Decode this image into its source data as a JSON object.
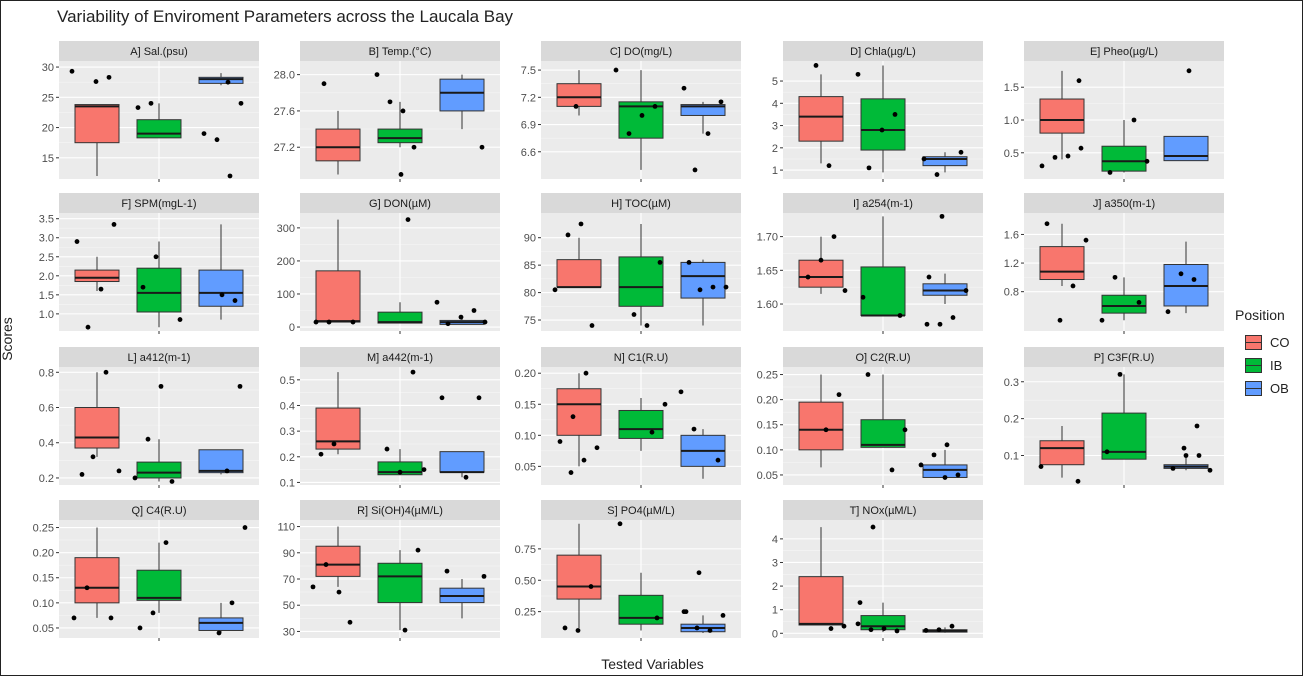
{
  "figure": {
    "title": "Variability of Enviroment Parameters across the Laucala Bay",
    "xlabel": "Tested Variables",
    "ylabel": "Scores"
  },
  "legend": {
    "title": "Position",
    "items": [
      {
        "label": "CO",
        "color": "#F8766D"
      },
      {
        "label": "IB",
        "color": "#00BA38"
      },
      {
        "label": "OB",
        "color": "#619CFF"
      }
    ]
  },
  "chart_data": [
    {
      "type": "boxplot",
      "title": "A] Sal.(psu)",
      "ylim": [
        11.5,
        31
      ],
      "ticks": [
        15,
        20,
        25,
        30
      ],
      "series": [
        {
          "name": "CO",
          "q1": 17.5,
          "median": 23.5,
          "q3": 23.8,
          "lower": 12,
          "upper": 23.8,
          "points": [
            29.3,
            28.3,
            27.6
          ]
        },
        {
          "name": "IB",
          "q1": 18.3,
          "median": 19,
          "q3": 21.3,
          "lower": 18.3,
          "upper": 24,
          "points": [
            24,
            23.3
          ]
        },
        {
          "name": "OB",
          "q1": 27.3,
          "median": 28,
          "q3": 28.3,
          "lower": 27,
          "upper": 29,
          "points": [
            12,
            18,
            19,
            24,
            27.5
          ]
        }
      ]
    },
    {
      "type": "boxplot",
      "title": "B] Temp.(°C)",
      "ylim": [
        26.85,
        28.15
      ],
      "ticks": [
        27.2,
        27.6,
        28.0
      ],
      "series": [
        {
          "name": "CO",
          "q1": 27.05,
          "median": 27.2,
          "q3": 27.4,
          "lower": 26.9,
          "upper": 27.6,
          "points": [
            27.9
          ]
        },
        {
          "name": "IB",
          "q1": 27.25,
          "median": 27.3,
          "q3": 27.4,
          "lower": 27.2,
          "upper": 27.7,
          "points": [
            27.6,
            27.7,
            28.0,
            27.2,
            26.9
          ]
        },
        {
          "name": "OB",
          "q1": 27.6,
          "median": 27.8,
          "q3": 27.95,
          "lower": 27.4,
          "upper": 28.0,
          "points": [
            27.2
          ]
        }
      ]
    },
    {
      "type": "boxplot",
      "title": "C] DO(mg/L)",
      "ylim": [
        6.3,
        7.6
      ],
      "ticks": [
        6.6,
        6.9,
        7.2,
        7.5
      ],
      "series": [
        {
          "name": "CO",
          "q1": 7.1,
          "median": 7.2,
          "q3": 7.35,
          "lower": 7.0,
          "upper": 7.5,
          "points": [
            7.1
          ]
        },
        {
          "name": "IB",
          "q1": 6.75,
          "median": 7.1,
          "q3": 7.15,
          "lower": 6.4,
          "upper": 7.5,
          "points": [
            7.1,
            7.0,
            6.8,
            7.5
          ]
        },
        {
          "name": "OB",
          "q1": 7.0,
          "median": 7.1,
          "q3": 7.12,
          "lower": 6.8,
          "upper": 7.15,
          "points": [
            7.3,
            7.15,
            6.8,
            6.4
          ]
        }
      ]
    },
    {
      "type": "boxplot",
      "title": "D] Chla(µg/L)",
      "ylim": [
        0.6,
        5.9
      ],
      "ticks": [
        1,
        2,
        3,
        4,
        5
      ],
      "series": [
        {
          "name": "CO",
          "q1": 2.3,
          "median": 3.4,
          "q3": 4.3,
          "lower": 1.3,
          "upper": 5.3,
          "points": [
            1.2,
            5.7
          ]
        },
        {
          "name": "IB",
          "q1": 1.9,
          "median": 2.8,
          "q3": 4.2,
          "lower": 0.9,
          "upper": 5.7,
          "points": [
            5.3,
            3.5,
            2.8,
            1.1
          ]
        },
        {
          "name": "OB",
          "q1": 1.2,
          "median": 1.5,
          "q3": 1.6,
          "lower": 0.9,
          "upper": 1.8,
          "points": [
            0.8,
            1.5,
            1.8
          ]
        }
      ]
    },
    {
      "type": "boxplot",
      "title": "E] Pheo(µg/L)",
      "ylim": [
        0.1,
        1.9
      ],
      "ticks": [
        0.5,
        1.0,
        1.5
      ],
      "series": [
        {
          "name": "CO",
          "q1": 0.8,
          "median": 1.0,
          "q3": 1.32,
          "lower": 0.4,
          "upper": 1.75,
          "points": [
            0.57,
            0.45,
            0.43,
            0.3,
            1.6
          ]
        },
        {
          "name": "IB",
          "q1": 0.22,
          "median": 0.37,
          "q3": 0.6,
          "lower": 0.2,
          "upper": 1.0,
          "points": [
            0.2,
            0.37,
            1.0
          ]
        },
        {
          "name": "OB",
          "q1": 0.38,
          "median": 0.45,
          "q3": 0.75,
          "lower": 0.38,
          "upper": 0.75,
          "points": [
            1.75
          ]
        }
      ]
    },
    {
      "type": "boxplot",
      "title": "F] SPM(mgL-1)",
      "ylim": [
        0.55,
        3.65
      ],
      "ticks": [
        1.0,
        1.5,
        2.0,
        2.5,
        3.0,
        3.5
      ],
      "series": [
        {
          "name": "CO",
          "q1": 1.85,
          "median": 1.95,
          "q3": 2.15,
          "lower": 1.6,
          "upper": 2.5,
          "points": [
            2.9,
            3.35,
            1.65,
            0.65
          ]
        },
        {
          "name": "IB",
          "q1": 1.05,
          "median": 1.55,
          "q3": 2.2,
          "lower": 0.65,
          "upper": 2.9,
          "points": [
            2.5,
            1.7,
            0.85
          ]
        },
        {
          "name": "OB",
          "q1": 1.2,
          "median": 1.55,
          "q3": 2.15,
          "lower": 0.85,
          "upper": 3.35,
          "points": [
            1.35,
            1.5
          ]
        }
      ]
    },
    {
      "type": "boxplot",
      "title": "G] DON(µM)",
      "ylim": [
        -12,
        345
      ],
      "ticks": [
        0,
        100,
        200,
        300
      ],
      "series": [
        {
          "name": "CO",
          "q1": 15,
          "median": 18,
          "q3": 170,
          "lower": 15,
          "upper": 325,
          "points": [
            15,
            15,
            15
          ]
        },
        {
          "name": "IB",
          "q1": 12,
          "median": 15,
          "q3": 45,
          "lower": 12,
          "upper": 75,
          "points": [
            325
          ]
        },
        {
          "name": "OB",
          "q1": 8,
          "median": 15,
          "q3": 20,
          "lower": 8,
          "upper": 30,
          "points": [
            75,
            50,
            30,
            10,
            15
          ]
        }
      ]
    },
    {
      "type": "boxplot",
      "title": "H] TOC(µM)",
      "ylim": [
        73,
        94.5
      ],
      "ticks": [
        75,
        80,
        85,
        90
      ],
      "series": [
        {
          "name": "CO",
          "q1": 81,
          "median": 81,
          "q3": 86,
          "lower": 81,
          "upper": 90,
          "points": [
            92.5,
            90.5,
            80.5,
            74
          ]
        },
        {
          "name": "IB",
          "q1": 77.5,
          "median": 81,
          "q3": 86.5,
          "lower": 74,
          "upper": 92.5,
          "points": [
            85.5,
            74,
            76
          ]
        },
        {
          "name": "OB",
          "q1": 79,
          "median": 83,
          "q3": 85.5,
          "lower": 74,
          "upper": 86,
          "points": [
            85.5,
            81,
            81,
            80.5
          ]
        }
      ]
    },
    {
      "type": "boxplot",
      "title": "I] a254(m-1)",
      "ylim": [
        1.56,
        1.735
      ],
      "ticks": [
        1.6,
        1.65,
        1.7
      ],
      "series": [
        {
          "name": "CO",
          "q1": 1.625,
          "median": 1.64,
          "q3": 1.665,
          "lower": 1.615,
          "upper": 1.7,
          "points": [
            1.7,
            1.665,
            1.64,
            1.62
          ]
        },
        {
          "name": "IB",
          "q1": 1.583,
          "median": 1.583,
          "q3": 1.655,
          "lower": 1.583,
          "upper": 1.73,
          "points": [
            1.61,
            1.583
          ]
        },
        {
          "name": "OB",
          "q1": 1.613,
          "median": 1.62,
          "q3": 1.63,
          "lower": 1.6,
          "upper": 1.645,
          "points": [
            1.73,
            1.64,
            1.62,
            1.58,
            1.57,
            1.57
          ]
        }
      ]
    },
    {
      "type": "boxplot",
      "title": "J] a350(m-1)",
      "ylim": [
        0.25,
        1.9
      ],
      "ticks": [
        0.8,
        1.2,
        1.6
      ],
      "series": [
        {
          "name": "CO",
          "q1": 0.97,
          "median": 1.08,
          "q3": 1.43,
          "lower": 0.88,
          "upper": 1.75,
          "points": [
            1.52,
            0.88,
            0.4,
            1.75
          ]
        },
        {
          "name": "IB",
          "q1": 0.5,
          "median": 0.6,
          "q3": 0.75,
          "lower": 0.4,
          "upper": 1.0,
          "points": [
            1.0,
            0.4,
            0.65
          ]
        },
        {
          "name": "OB",
          "q1": 0.6,
          "median": 0.88,
          "q3": 1.18,
          "lower": 0.5,
          "upper": 1.5,
          "points": [
            0.97,
            1.05,
            0.52
          ]
        }
      ]
    },
    {
      "type": "boxplot",
      "title": "L] a412(m-1)",
      "ylim": [
        0.16,
        0.83
      ],
      "ticks": [
        0.2,
        0.4,
        0.6,
        0.8
      ],
      "series": [
        {
          "name": "CO",
          "q1": 0.37,
          "median": 0.43,
          "q3": 0.6,
          "lower": 0.32,
          "upper": 0.8,
          "points": [
            0.22,
            0.24,
            0.8,
            0.32
          ]
        },
        {
          "name": "IB",
          "q1": 0.2,
          "median": 0.23,
          "q3": 0.29,
          "lower": 0.18,
          "upper": 0.42,
          "points": [
            0.72,
            0.42,
            0.2,
            0.18
          ]
        },
        {
          "name": "OB",
          "q1": 0.23,
          "median": 0.24,
          "q3": 0.36,
          "lower": 0.22,
          "upper": 0.36,
          "points": [
            0.72,
            0.24
          ]
        }
      ]
    },
    {
      "type": "boxplot",
      "title": "M] a442(m-1)",
      "ylim": [
        0.09,
        0.55
      ],
      "ticks": [
        0.1,
        0.2,
        0.3,
        0.4,
        0.5
      ],
      "series": [
        {
          "name": "CO",
          "q1": 0.23,
          "median": 0.26,
          "q3": 0.39,
          "lower": 0.21,
          "upper": 0.53,
          "points": [
            0.25,
            0.21
          ]
        },
        {
          "name": "IB",
          "q1": 0.13,
          "median": 0.14,
          "q3": 0.18,
          "lower": 0.13,
          "upper": 0.23,
          "points": [
            0.53,
            0.14,
            0.23,
            0.15
          ]
        },
        {
          "name": "OB",
          "q1": 0.14,
          "median": 0.14,
          "q3": 0.22,
          "lower": 0.12,
          "upper": 0.22,
          "points": [
            0.43,
            0.43,
            0.12
          ]
        }
      ]
    },
    {
      "type": "boxplot",
      "title": "N] C1(R.U)",
      "ylim": [
        0.02,
        0.21
      ],
      "ticks": [
        0.05,
        0.1,
        0.15,
        0.2
      ],
      "series": [
        {
          "name": "CO",
          "q1": 0.1,
          "median": 0.15,
          "q3": 0.175,
          "lower": 0.05,
          "upper": 0.2,
          "points": [
            0.2,
            0.13,
            0.09,
            0.08,
            0.06,
            0.04
          ]
        },
        {
          "name": "IB",
          "q1": 0.095,
          "median": 0.11,
          "q3": 0.14,
          "lower": 0.075,
          "upper": 0.16,
          "points": [
            0.15,
            0.105
          ]
        },
        {
          "name": "OB",
          "q1": 0.05,
          "median": 0.075,
          "q3": 0.1,
          "lower": 0.03,
          "upper": 0.11,
          "points": [
            0.11,
            0.17,
            0.06
          ]
        }
      ]
    },
    {
      "type": "boxplot",
      "title": "O] C2(R.U)",
      "ylim": [
        0.03,
        0.265
      ],
      "ticks": [
        0.05,
        0.1,
        0.15,
        0.2,
        0.25
      ],
      "series": [
        {
          "name": "CO",
          "q1": 0.1,
          "median": 0.14,
          "q3": 0.195,
          "lower": 0.065,
          "upper": 0.25,
          "points": [
            0.21,
            0.14
          ]
        },
        {
          "name": "IB",
          "q1": 0.105,
          "median": 0.11,
          "q3": 0.16,
          "lower": 0.105,
          "upper": 0.25,
          "points": [
            0.25,
            0.14,
            0.06
          ]
        },
        {
          "name": "OB",
          "q1": 0.045,
          "median": 0.06,
          "q3": 0.07,
          "lower": 0.04,
          "upper": 0.1,
          "points": [
            0.11,
            0.09,
            0.07,
            0.05,
            0.045
          ]
        }
      ]
    },
    {
      "type": "boxplot",
      "title": "P] C3F(R.U)",
      "ylim": [
        0.02,
        0.34
      ],
      "ticks": [
        0.1,
        0.2,
        0.3
      ],
      "series": [
        {
          "name": "CO",
          "q1": 0.075,
          "median": 0.12,
          "q3": 0.14,
          "lower": 0.04,
          "upper": 0.18,
          "points": [
            0.07,
            0.03
          ]
        },
        {
          "name": "IB",
          "q1": 0.09,
          "median": 0.11,
          "q3": 0.215,
          "lower": 0.09,
          "upper": 0.32,
          "points": [
            0.32,
            0.11
          ]
        },
        {
          "name": "OB",
          "q1": 0.065,
          "median": 0.07,
          "q3": 0.075,
          "lower": 0.06,
          "upper": 0.1,
          "points": [
            0.1,
            0.1,
            0.065,
            0.06,
            0.18,
            0.12
          ]
        }
      ]
    },
    {
      "type": "boxplot",
      "title": "Q] C4(R.U)",
      "ylim": [
        0.03,
        0.265
      ],
      "ticks": [
        0.05,
        0.1,
        0.15,
        0.2,
        0.25
      ],
      "series": [
        {
          "name": "CO",
          "q1": 0.1,
          "median": 0.13,
          "q3": 0.19,
          "lower": 0.07,
          "upper": 0.25,
          "points": [
            0.13,
            0.07,
            0.07
          ]
        },
        {
          "name": "IB",
          "q1": 0.105,
          "median": 0.11,
          "q3": 0.165,
          "lower": 0.08,
          "upper": 0.22,
          "points": [
            0.22,
            0.08,
            0.05
          ]
        },
        {
          "name": "OB",
          "q1": 0.045,
          "median": 0.06,
          "q3": 0.07,
          "lower": 0.04,
          "upper": 0.1,
          "points": [
            0.25,
            0.1,
            0.04
          ]
        }
      ]
    },
    {
      "type": "boxplot",
      "title": "R] Si(OH)4(µM/L)",
      "ylim": [
        25,
        115
      ],
      "ticks": [
        30,
        50,
        70,
        90,
        110
      ],
      "series": [
        {
          "name": "CO",
          "q1": 72,
          "median": 81,
          "q3": 95,
          "lower": 64,
          "upper": 110,
          "points": [
            60,
            81,
            64,
            37
          ]
        },
        {
          "name": "IB",
          "q1": 52,
          "median": 72,
          "q3": 82,
          "lower": 31,
          "upper": 92,
          "points": [
            92,
            31
          ]
        },
        {
          "name": "OB",
          "q1": 52,
          "median": 57,
          "q3": 63,
          "lower": 40,
          "upper": 70,
          "points": [
            76,
            72
          ]
        }
      ]
    },
    {
      "type": "boxplot",
      "title": "S] PO4(µM/L)",
      "ylim": [
        0.04,
        0.98
      ],
      "ticks": [
        0.25,
        0.5,
        0.75
      ],
      "series": [
        {
          "name": "CO",
          "q1": 0.35,
          "median": 0.45,
          "q3": 0.7,
          "lower": 0.12,
          "upper": 0.95,
          "points": [
            0.45,
            0.1,
            0.12
          ]
        },
        {
          "name": "IB",
          "q1": 0.15,
          "median": 0.2,
          "q3": 0.38,
          "lower": 0.1,
          "upper": 0.56,
          "points": [
            0.95,
            0.2
          ]
        },
        {
          "name": "OB",
          "q1": 0.09,
          "median": 0.12,
          "q3": 0.15,
          "lower": 0.08,
          "upper": 0.22,
          "points": [
            0.56,
            0.25,
            0.22,
            0.1,
            0.12,
            0.25
          ]
        }
      ]
    },
    {
      "type": "boxplot",
      "title": "T] NOx(µM/L)",
      "ylim": [
        -0.2,
        4.8
      ],
      "ticks": [
        0,
        1,
        2,
        3,
        4
      ],
      "series": [
        {
          "name": "CO",
          "q1": 0.35,
          "median": 0.4,
          "q3": 2.4,
          "lower": 0.35,
          "upper": 4.5,
          "points": [
            0.3,
            0.2
          ]
        },
        {
          "name": "IB",
          "q1": 0.15,
          "median": 0.3,
          "q3": 0.75,
          "lower": 0.05,
          "upper": 1.3,
          "points": [
            4.5,
            1.3,
            0.1,
            0.2,
            0.15,
            0.4
          ]
        },
        {
          "name": "OB",
          "q1": 0.05,
          "median": 0.1,
          "q3": 0.15,
          "lower": 0.02,
          "upper": 0.25,
          "points": [
            0.3,
            0.15,
            0.12
          ]
        }
      ]
    }
  ]
}
